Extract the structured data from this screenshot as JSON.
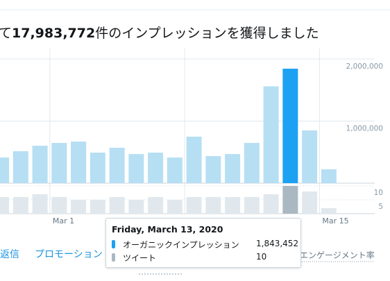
{
  "header": {
    "prefix": "て",
    "number": "17,983,772",
    "suffix": "件のインプレッションを獲得しました"
  },
  "chart_data": {
    "type": "bar",
    "categories": [
      null,
      null,
      null,
      "Mar 1",
      null,
      null,
      null,
      null,
      null,
      null,
      null,
      null,
      null,
      null,
      null,
      null,
      null,
      "Mar 15"
    ],
    "series": [
      {
        "name": "オーガニックインプレッション",
        "color": "#b6dff3",
        "highlight_color": "#1da1f2",
        "values": [
          413000,
          514000,
          603000,
          648000,
          670000,
          492000,
          570000,
          469000,
          492000,
          413000,
          749000,
          436000,
          469000,
          648000,
          1560000,
          1843452,
          849000,
          223000
        ],
        "value_labels": [
          null,
          null,
          null,
          null,
          null,
          null,
          null,
          null,
          null,
          null,
          null,
          null,
          null,
          null,
          null,
          "1,843,452",
          null,
          null
        ]
      },
      {
        "name": "ツイート",
        "color": "#e1e8ed",
        "highlight_color": "#aab8c2",
        "axis": "y2",
        "values": [
          6,
          6,
          7,
          6,
          5,
          5,
          6,
          5,
          6,
          5,
          6,
          6,
          6,
          6,
          7,
          10,
          8,
          2
        ]
      }
    ],
    "highlight_index": 15,
    "ylim": [
      0,
      2000000
    ],
    "yticks": [
      {
        "value": 1000000,
        "label": "1,000,000"
      },
      {
        "value": 2000000,
        "label": "2,000,000"
      }
    ],
    "y2lim": [
      0,
      10
    ],
    "y2ticks": [
      5,
      10
    ],
    "grid": true,
    "tooltip_title": "Friday, March 13, 2020"
  },
  "tabs": [
    "返信",
    "プロモーション",
    "エンゲージメント率"
  ]
}
